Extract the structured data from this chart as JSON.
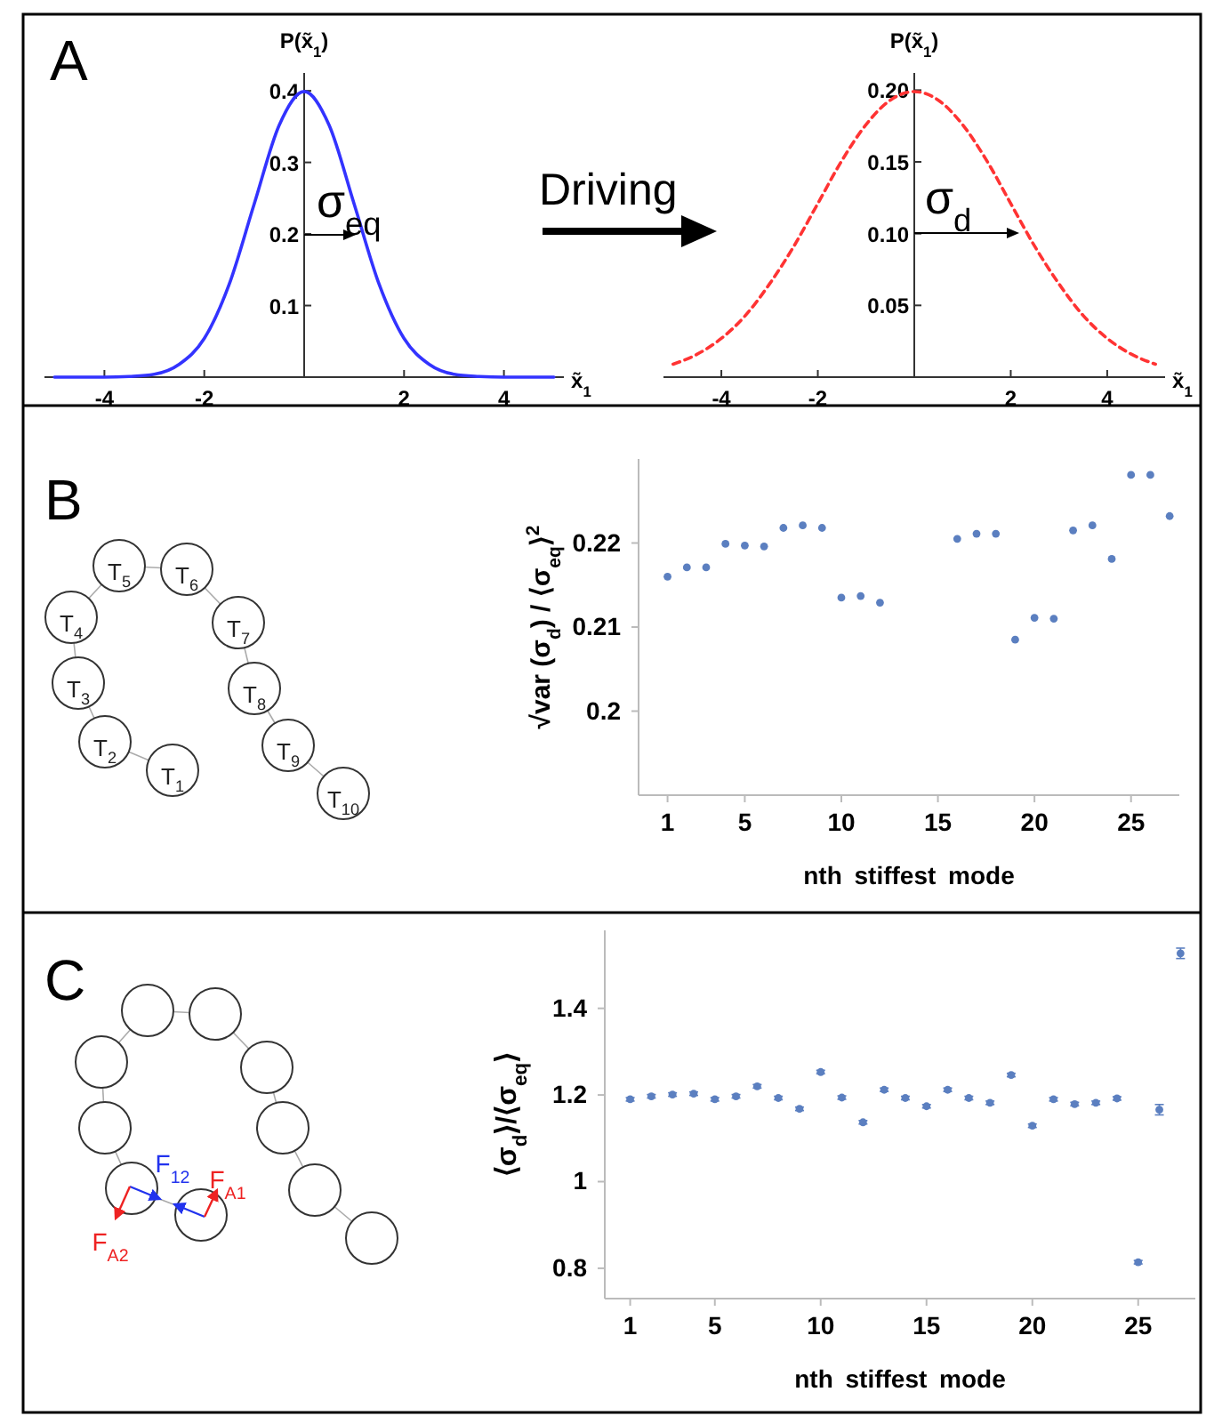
{
  "chart_data": [
    {
      "type": "line",
      "xlabel": "x̃$_{1}$",
      "ylabel": "P(x̃$_{1}$)",
      "x": [
        -5,
        -4.5,
        -4,
        -3.5,
        -3,
        -2.5,
        -2,
        -1.5,
        -1,
        -0.5,
        0,
        0.5,
        1,
        1.5,
        2,
        2.5,
        3,
        3.5,
        4,
        4.5,
        5
      ],
      "values": [
        0,
        0,
        0,
        0.001,
        0.004,
        0.018,
        0.054,
        0.13,
        0.242,
        0.352,
        0.399,
        0.352,
        0.242,
        0.13,
        0.054,
        0.018,
        0.004,
        0.001,
        0,
        0,
        0
      ],
      "color": "#3333ff",
      "line_style": "solid",
      "xlim": [
        -5.2,
        5.2
      ],
      "ylim": [
        0,
        0.425
      ],
      "xticks": [
        -4,
        -2,
        2,
        4
      ],
      "yticks": [
        0.1,
        0.2,
        0.3,
        0.4
      ],
      "annotations": [
        "A",
        "Driving",
        "σ$_{eq}$"
      ]
    },
    {
      "type": "line",
      "xlabel": "x̃$_{1}$",
      "ylabel": "P(x̃$_{1}$)",
      "x": [
        -5,
        -4.5,
        -4,
        -3.5,
        -3,
        -2.5,
        -2,
        -1.5,
        -1,
        -0.5,
        0,
        0.5,
        1,
        1.5,
        2,
        2.5,
        3,
        3.5,
        4,
        4.5,
        5
      ],
      "values": [
        0.009,
        0.016,
        0.027,
        0.043,
        0.065,
        0.091,
        0.121,
        0.151,
        0.176,
        0.193,
        0.199,
        0.193,
        0.176,
        0.151,
        0.121,
        0.091,
        0.065,
        0.043,
        0.027,
        0.016,
        0.009
      ],
      "color": "#ff3333",
      "line_style": "dashed",
      "xlim": [
        -5.2,
        5.2
      ],
      "ylim": [
        0,
        0.212
      ],
      "xticks": [
        -4,
        -2,
        2,
        4
      ],
      "yticks": [
        0.05,
        {
          "value": 0.1,
          "label": "0.10"
        },
        0.15,
        {
          "value": 0.2,
          "label": "0.20"
        }
      ],
      "annotations": [
        "σ$_{d}$"
      ]
    },
    {
      "type": "scatter",
      "xlabel": "nth stiffest mode",
      "ylabel": "√var (σ$_{d}$) / ⟨σ$_{eq}$⟩$^{2}$",
      "x": [
        1,
        2,
        3,
        4,
        5,
        6,
        7,
        8,
        9,
        10,
        11,
        12,
        16,
        17,
        18,
        19,
        20,
        21,
        22,
        23,
        24,
        25,
        26,
        27
      ],
      "values": [
        0.216,
        0.2171,
        0.2171,
        0.2199,
        0.2197,
        0.2196,
        0.2218,
        0.2221,
        0.2218,
        0.2135,
        0.2137,
        0.2129,
        0.2205,
        0.2211,
        0.2211,
        0.2085,
        0.2111,
        0.211,
        0.2215,
        0.2221,
        0.2181,
        0.2281,
        0.2281,
        0.2232
      ],
      "color": "#5b7fc0",
      "marker": "circle",
      "xlim": [
        -0.5,
        27.5
      ],
      "ylim": [
        0.19,
        0.23
      ],
      "xticks": [
        1,
        5,
        10,
        15,
        20,
        25
      ],
      "yticks": [
        0.2,
        0.21,
        0.22
      ],
      "annotations": [
        "B",
        "T$_{1}$",
        "T$_{2}$",
        "T$_{3}$",
        "T$_{4}$",
        "T$_{5}$",
        "T$_{6}$",
        "T$_{7}$",
        "T$_{8}$",
        "T$_{9}$",
        "T$_{10}$"
      ]
    },
    {
      "type": "scatter",
      "xlabel": "nth stiffest mode",
      "ylabel": "⟨σ$_{d}$⟩/⟨σ$_{eq}$⟩",
      "x": [
        1,
        2,
        3,
        4,
        5,
        6,
        7,
        8,
        9,
        10,
        11,
        12,
        13,
        14,
        15,
        16,
        17,
        18,
        19,
        20,
        21,
        22,
        23,
        24,
        25,
        26,
        27
      ],
      "values": [
        1.19,
        1.197,
        1.201,
        1.203,
        1.19,
        1.197,
        1.22,
        1.193,
        1.168,
        1.253,
        1.194,
        1.137,
        1.212,
        1.193,
        1.174,
        1.212,
        1.193,
        1.182,
        1.246,
        1.129,
        1.19,
        1.179,
        1.182,
        1.192,
        0.814,
        1.166,
        1.527
      ],
      "errors": [
        0.004,
        0.004,
        0.004,
        0.004,
        0.004,
        0.004,
        0.004,
        0.004,
        0.004,
        0.004,
        0.004,
        0.004,
        0.004,
        0.004,
        0.004,
        0.004,
        0.004,
        0.004,
        0.004,
        0.004,
        0.004,
        0.004,
        0.004,
        0.004,
        0.004,
        0.012,
        0.012
      ],
      "color": "#5b7fc0",
      "marker": "circle",
      "xlim": [
        -0.2,
        27.7
      ],
      "ylim": [
        0.73,
        1.58
      ],
      "xticks": [
        1,
        5,
        10,
        15,
        20,
        25
      ],
      "yticks": [
        0.8,
        1,
        1.2,
        1.4
      ],
      "annotations": [
        "C",
        "F$_{12}$",
        "F$_{A1}$",
        "F$_{A2}$"
      ]
    }
  ]
}
